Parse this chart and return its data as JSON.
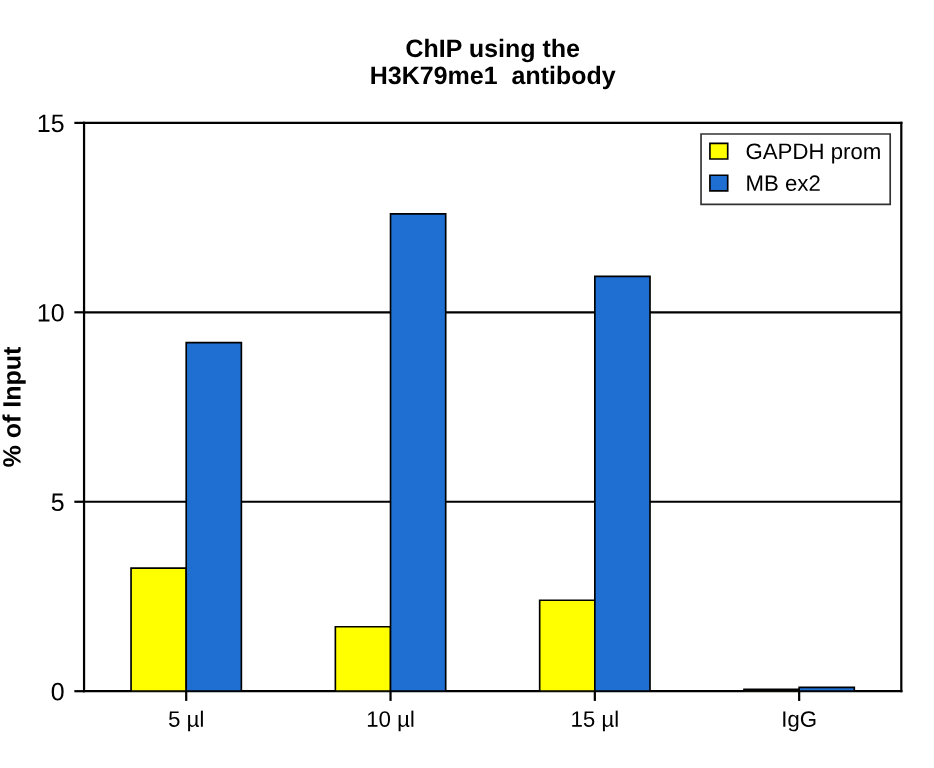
{
  "chart_data": {
    "type": "bar",
    "title": "ChIP using the\nH3K79me1  antibody",
    "ylabel": "% of Input",
    "categories": [
      "5 µl",
      "10 µl",
      "15 µl",
      "IgG"
    ],
    "series": [
      {
        "name": "GAPDH prom",
        "color": "#ffff00",
        "values": [
          3.25,
          1.7,
          2.4,
          0.05
        ]
      },
      {
        "name": "MB ex2",
        "color": "#1f6fd2",
        "values": [
          9.2,
          12.6,
          10.95,
          0.1
        ]
      }
    ],
    "ylim": [
      0,
      15
    ],
    "yticks": [
      0,
      5,
      10,
      15
    ],
    "grid": "y",
    "legend": "top right"
  }
}
